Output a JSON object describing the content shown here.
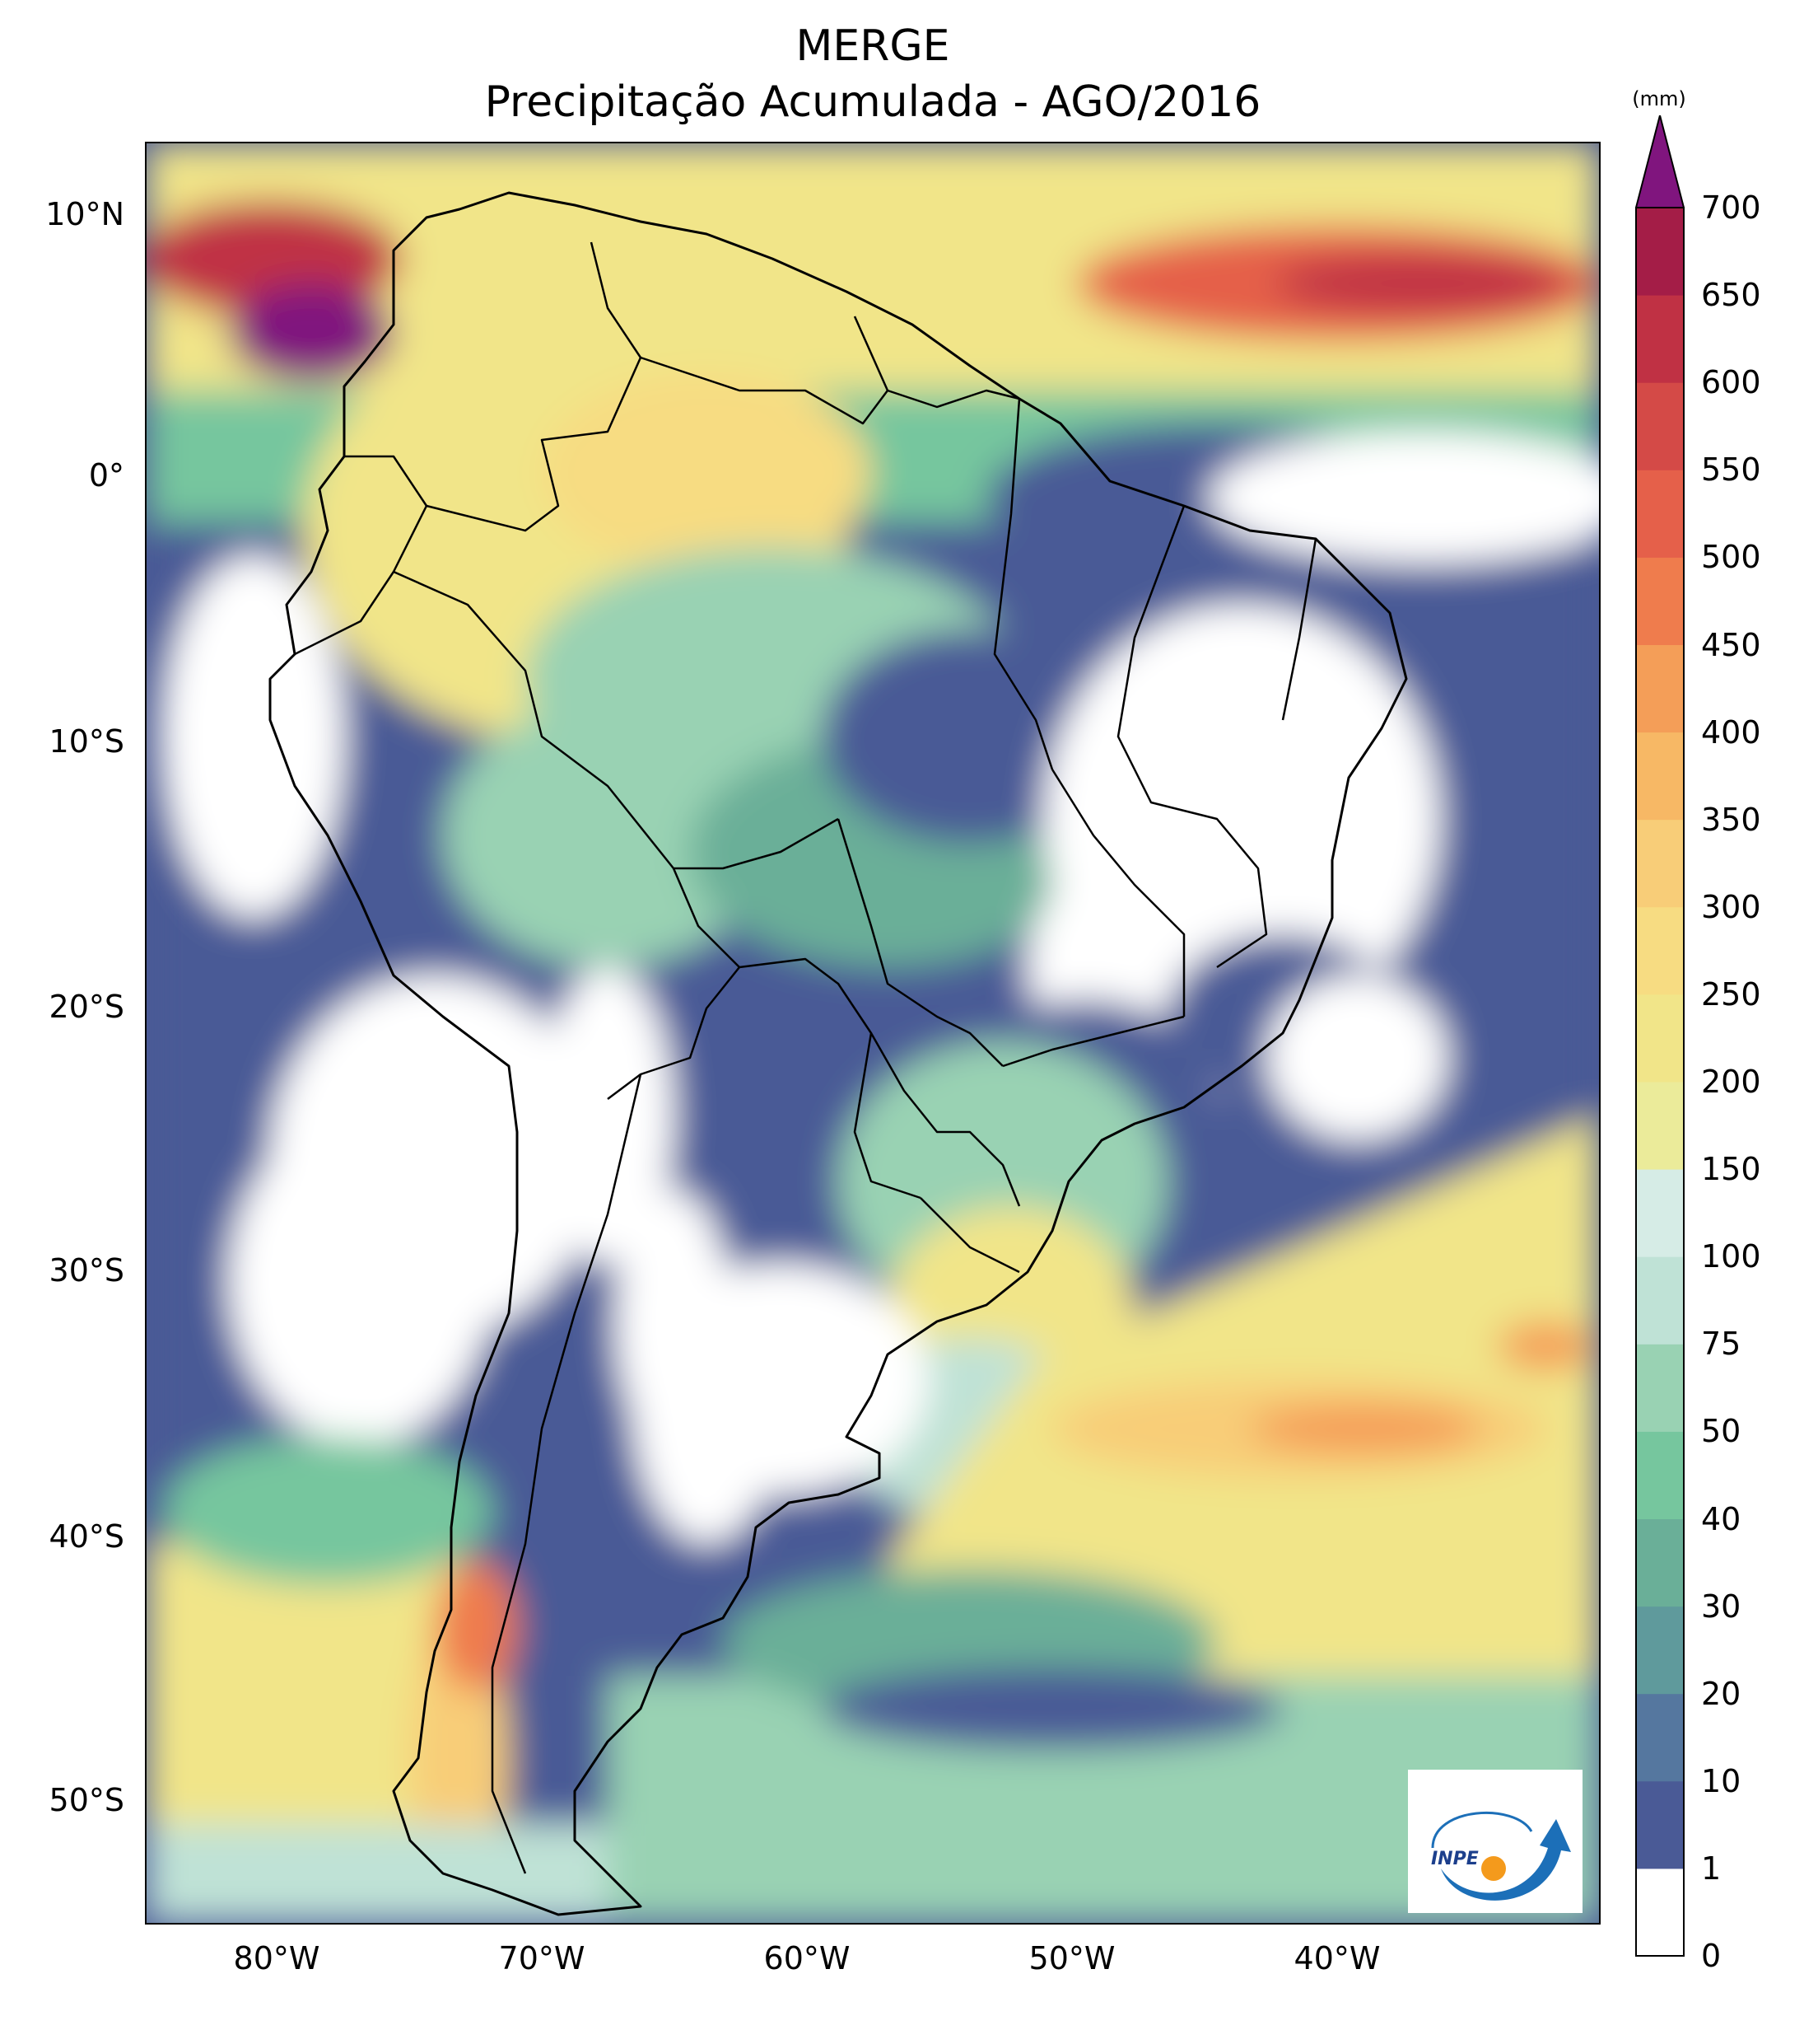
{
  "title": "MERGE",
  "subtitle": "Precipitação Acumulada - AGO/2016",
  "colorbar": {
    "unit": "(mm)",
    "levels": [
      0,
      1,
      10,
      20,
      30,
      40,
      50,
      75,
      100,
      150,
      200,
      250,
      300,
      350,
      400,
      450,
      500,
      550,
      600,
      650,
      700
    ],
    "labels": [
      "0",
      "1",
      "10",
      "20",
      "30",
      "40",
      "50",
      "75",
      "100",
      "150",
      "200",
      "250",
      "300",
      "350",
      "400",
      "450",
      "500",
      "550",
      "600",
      "650",
      "700"
    ],
    "colors": [
      "#ffffff",
      "#4a5a96",
      "#55779f",
      "#5f9a9c",
      "#6aaf98",
      "#76c69e",
      "#99d2b3",
      "#bfe2d6",
      "#d6ece6",
      "#ebeb9a",
      "#f1e589",
      "#f7dc82",
      "#f8cd78",
      "#f7b865",
      "#f49e58",
      "#ef7c4d",
      "#e5604a",
      "#d44a47",
      "#c03144",
      "#a41d47"
    ],
    "extend_color": "#80157e"
  },
  "chart_data": {
    "type": "heatmap",
    "title": "MERGE",
    "subtitle": "Precipitação Acumulada - AGO/2016",
    "lon_range": [
      -85,
      -30
    ],
    "lat_range": [
      -56,
      13
    ],
    "lon_ticks": [
      -80,
      -70,
      -60,
      -50,
      -40
    ],
    "lon_tick_labels": [
      "80°W",
      "70°W",
      "60°W",
      "50°W",
      "40°W"
    ],
    "lat_ticks": [
      10,
      0,
      -10,
      -20,
      -30,
      -40,
      -50
    ],
    "lat_tick_labels": [
      "10°N",
      "0°",
      "10°S",
      "20°S",
      "30°S",
      "40°S",
      "50°S"
    ],
    "colorbar_unit": "(mm)"
  },
  "logo": {
    "text": "INPE"
  }
}
